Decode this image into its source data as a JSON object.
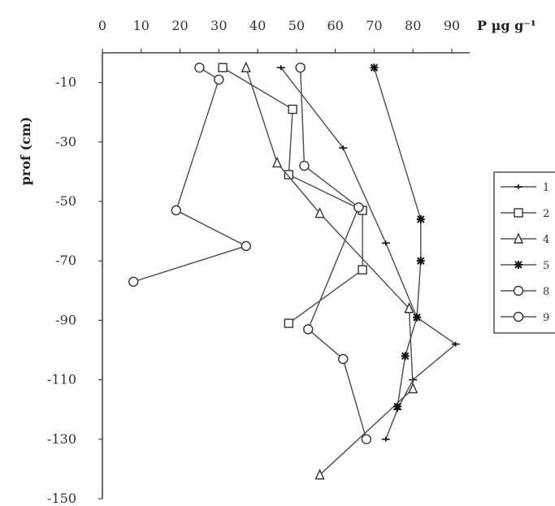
{
  "chart_data": {
    "type": "line",
    "title": "",
    "xlabel": "P µg g⁻¹",
    "ylabel": "prof (cm)",
    "xlim": [
      0,
      90
    ],
    "ylim": [
      -150,
      0
    ],
    "x_ticks": [
      "0",
      "10",
      "20",
      "30",
      "40",
      "50",
      "60",
      "70",
      "80",
      "90"
    ],
    "y_ticks": [
      "-10",
      "-30",
      "-50",
      "-70",
      "-90",
      "-110",
      "-130",
      "-150"
    ],
    "x_tick_values": [
      0,
      10,
      20,
      30,
      40,
      50,
      60,
      70,
      80,
      90
    ],
    "y_tick_values": [
      -10,
      -30,
      -50,
      -70,
      -90,
      -110,
      -130,
      -150
    ],
    "grid": false,
    "legend_position": "right",
    "series": [
      {
        "name": "1",
        "marker": "cross",
        "points": [
          [
            46,
            -5
          ],
          [
            62,
            -32
          ],
          [
            73,
            -64
          ],
          [
            81,
            -89
          ],
          [
            91,
            -98
          ],
          [
            80,
            -110
          ],
          [
            76,
            -120
          ],
          [
            73,
            -130
          ]
        ]
      },
      {
        "name": "2",
        "marker": "square",
        "points": [
          [
            31,
            -5
          ],
          [
            49,
            -19
          ],
          [
            48,
            -41
          ],
          [
            67,
            -53
          ],
          [
            67,
            -73
          ],
          [
            48,
            -91
          ]
        ]
      },
      {
        "name": "4",
        "marker": "triangle",
        "points": [
          [
            37,
            -5
          ],
          [
            45,
            -37
          ],
          [
            56,
            -54
          ],
          [
            79,
            -86
          ],
          [
            80,
            -113
          ],
          [
            56,
            -142
          ]
        ]
      },
      {
        "name": "5",
        "marker": "star",
        "points": [
          [
            70,
            -5
          ],
          [
            82,
            -56
          ],
          [
            82,
            -70
          ],
          [
            81,
            -89
          ],
          [
            78,
            -102
          ],
          [
            76,
            -119
          ]
        ]
      },
      {
        "name": "8",
        "marker": "circle",
        "points": [
          [
            25,
            -5
          ],
          [
            30,
            -9
          ],
          [
            19,
            -53
          ],
          [
            37,
            -65
          ],
          [
            8,
            -77
          ]
        ]
      },
      {
        "name": "9",
        "marker": "circle",
        "points": [
          [
            51,
            -5
          ],
          [
            52,
            -38
          ],
          [
            66,
            -52
          ],
          [
            53,
            -93
          ],
          [
            62,
            -103
          ],
          [
            68,
            -130
          ]
        ]
      }
    ]
  }
}
